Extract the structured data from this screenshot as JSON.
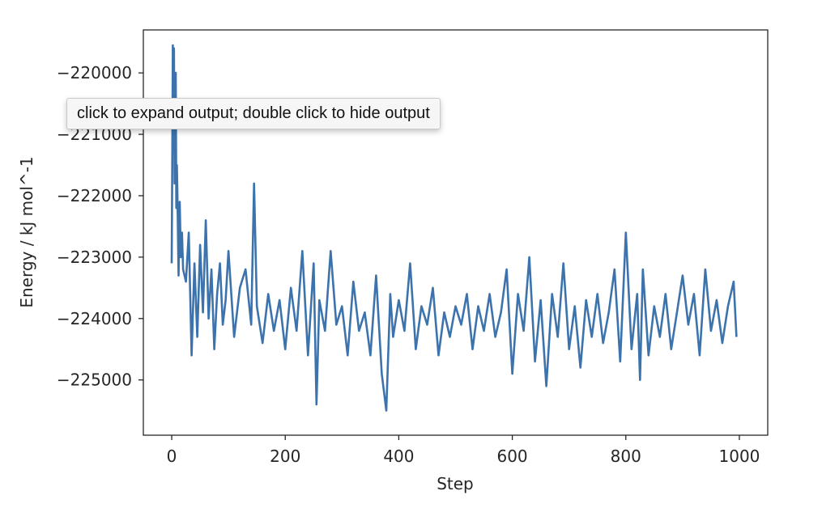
{
  "chart_data": {
    "type": "line",
    "xlabel": "Step",
    "ylabel": "Energy / kJ mol^-1",
    "xlim": [
      -50,
      1050
    ],
    "ylim": [
      -225900,
      -219300
    ],
    "xticks": [
      0,
      200,
      400,
      600,
      800,
      1000
    ],
    "xtick_labels": [
      "0",
      "200",
      "400",
      "600",
      "800",
      "1000"
    ],
    "yticks": [
      -220000,
      -221000,
      -222000,
      -223000,
      -224000,
      -225000
    ],
    "ytick_labels": [
      "−220000",
      "−221000",
      "−222000",
      "−223000",
      "−224000",
      "−225000"
    ],
    "grid": false,
    "line_color": "#3c73ad",
    "series": [
      {
        "x": [
          0,
          1,
          2,
          3,
          4,
          5,
          6,
          7,
          8,
          9,
          10,
          12,
          14,
          16,
          18,
          20,
          25,
          30,
          35,
          40,
          45,
          50,
          55,
          60,
          65,
          70,
          75,
          80,
          85,
          90,
          95,
          100,
          110,
          120,
          130,
          140,
          145,
          150,
          160,
          170,
          180,
          190,
          200,
          210,
          220,
          230,
          240,
          250,
          255,
          260,
          270,
          280,
          290,
          300,
          310,
          320,
          330,
          340,
          350,
          360,
          370,
          378,
          385,
          390,
          400,
          410,
          420,
          430,
          440,
          450,
          460,
          470,
          480,
          490,
          500,
          510,
          520,
          530,
          540,
          550,
          560,
          570,
          580,
          590,
          600,
          610,
          620,
          630,
          640,
          650,
          660,
          670,
          680,
          690,
          700,
          710,
          720,
          730,
          740,
          750,
          760,
          770,
          780,
          790,
          800,
          810,
          820,
          825,
          830,
          840,
          850,
          860,
          870,
          880,
          890,
          900,
          910,
          920,
          930,
          940,
          950,
          960,
          970,
          980,
          990,
          995
        ],
        "y": [
          -223100,
          -221500,
          -219550,
          -220500,
          -219600,
          -221800,
          -221100,
          -220000,
          -222200,
          -221500,
          -222000,
          -223300,
          -222100,
          -223000,
          -222600,
          -223200,
          -223400,
          -222600,
          -224600,
          -223100,
          -224300,
          -222800,
          -223900,
          -222400,
          -224000,
          -223200,
          -224500,
          -223600,
          -223100,
          -224100,
          -223700,
          -222900,
          -224300,
          -223500,
          -223200,
          -224100,
          -221800,
          -223800,
          -224400,
          -223600,
          -224200,
          -223700,
          -224500,
          -223500,
          -224200,
          -222900,
          -224600,
          -223100,
          -225400,
          -223700,
          -224200,
          -222900,
          -224100,
          -223800,
          -224600,
          -223400,
          -224200,
          -223900,
          -224600,
          -223300,
          -224900,
          -225500,
          -223600,
          -224300,
          -223700,
          -224200,
          -223100,
          -224500,
          -223800,
          -224100,
          -223500,
          -224600,
          -223900,
          -224300,
          -223800,
          -224100,
          -223600,
          -224500,
          -223800,
          -224200,
          -223600,
          -224300,
          -223900,
          -223200,
          -224900,
          -223600,
          -224200,
          -223000,
          -224700,
          -223700,
          -225100,
          -223600,
          -224300,
          -223100,
          -224500,
          -223800,
          -224800,
          -223700,
          -224300,
          -223600,
          -224400,
          -223900,
          -223200,
          -224700,
          -222600,
          -224500,
          -223600,
          -225000,
          -223200,
          -224600,
          -223800,
          -224300,
          -223600,
          -224500,
          -223900,
          -223300,
          -224100,
          -223600,
          -224600,
          -223200,
          -224200,
          -223700,
          -224400,
          -223800,
          -223400,
          -224300
        ]
      }
    ]
  },
  "tooltip": {
    "text": "click to expand output; double click to hide output"
  }
}
